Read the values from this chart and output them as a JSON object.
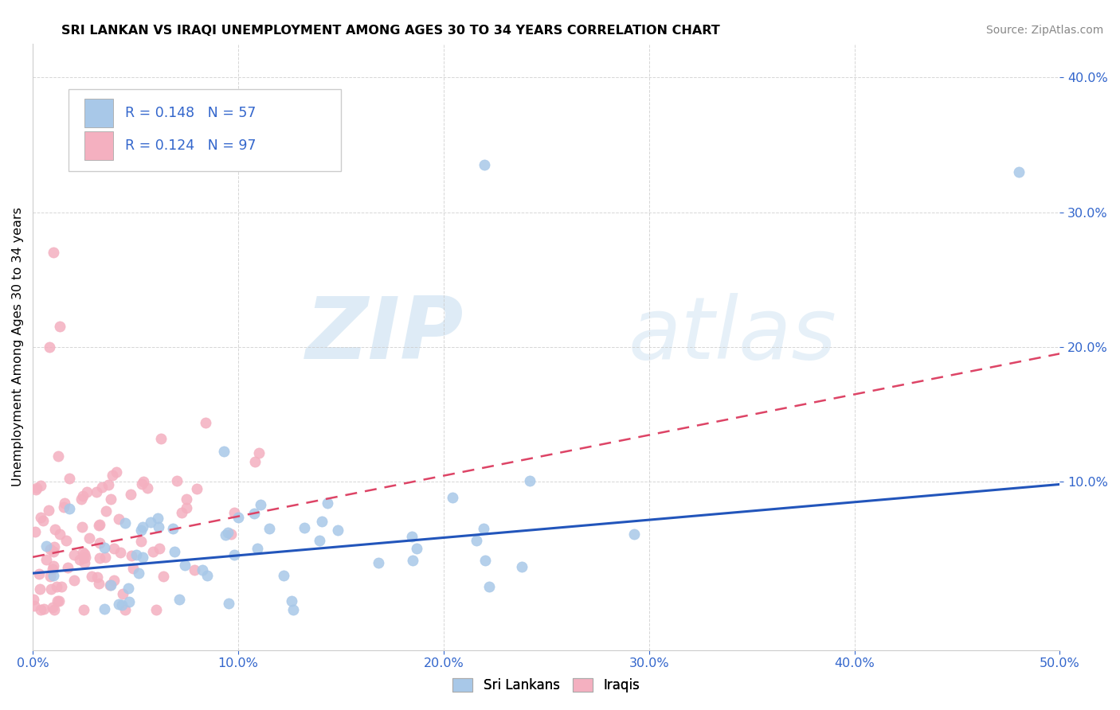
{
  "title": "SRI LANKAN VS IRAQI UNEMPLOYMENT AMONG AGES 30 TO 34 YEARS CORRELATION CHART",
  "source": "Source: ZipAtlas.com",
  "ylabel": "Unemployment Among Ages 30 to 34 years",
  "xlim": [
    0.0,
    0.5
  ],
  "ylim": [
    -0.025,
    0.425
  ],
  "xtick_vals": [
    0.0,
    0.1,
    0.2,
    0.3,
    0.4,
    0.5
  ],
  "ytick_vals": [
    0.1,
    0.2,
    0.3,
    0.4
  ],
  "sri_lankan_color": "#a8c8e8",
  "iraqi_color": "#f4b0c0",
  "sri_lankan_line_color": "#2255bb",
  "iraqi_line_color": "#dd4466",
  "legend_color": "#3366cc",
  "R_sri": 0.148,
  "N_sri": 57,
  "R_iraqi": 0.124,
  "N_iraqi": 97,
  "sri_line_x0": 0.0,
  "sri_line_x1": 0.5,
  "sri_line_y0": 0.032,
  "sri_line_y1": 0.098,
  "iraqi_line_x0": 0.0,
  "iraqi_line_x1": 0.5,
  "iraqi_line_y0": 0.044,
  "iraqi_line_y1": 0.195
}
